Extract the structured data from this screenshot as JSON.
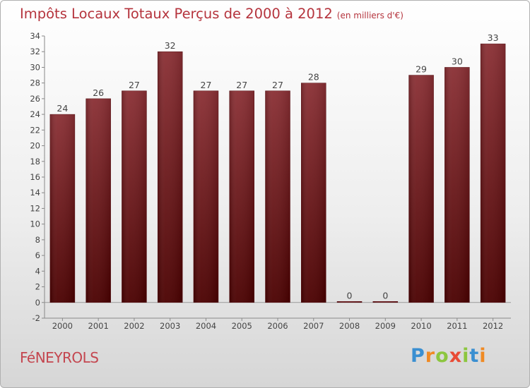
{
  "header": {
    "title": "Impôts Locaux Totaux Perçus de 2000 à 2012",
    "unit": "(en milliers d'€)"
  },
  "footer": {
    "city": "FéNEYROLS",
    "brand": {
      "letters": [
        "P",
        "r",
        "o",
        "x",
        "i",
        "t",
        "i"
      ],
      "colors": [
        "#3a8fd1",
        "#f08a24",
        "#8cc63f",
        "#e94b35",
        "#8cc63f",
        "#3a8fd1",
        "#f08a24"
      ]
    }
  },
  "colors": {
    "bar_top": "#8a2f34",
    "bar_bottom": "#4a0000",
    "text": "#444444",
    "grid": "#bbbbbb"
  },
  "chart_data": {
    "type": "bar",
    "categories": [
      "2000",
      "2001",
      "2002",
      "2003",
      "2004",
      "2005",
      "2006",
      "2007",
      "2008",
      "2009",
      "2010",
      "2011",
      "2012"
    ],
    "values": [
      24,
      26,
      27,
      32,
      27,
      27,
      27,
      28,
      0,
      0,
      29,
      30,
      33
    ],
    "ylim": [
      -2,
      34
    ],
    "yticks": [
      -2,
      0,
      2,
      4,
      6,
      8,
      10,
      12,
      14,
      16,
      18,
      20,
      22,
      24,
      26,
      28,
      30,
      32,
      34
    ],
    "title": "Impôts Locaux Totaux Perçus de 2000 à 2012",
    "xlabel": "",
    "ylabel": "",
    "grid": false,
    "data_labels": true
  }
}
